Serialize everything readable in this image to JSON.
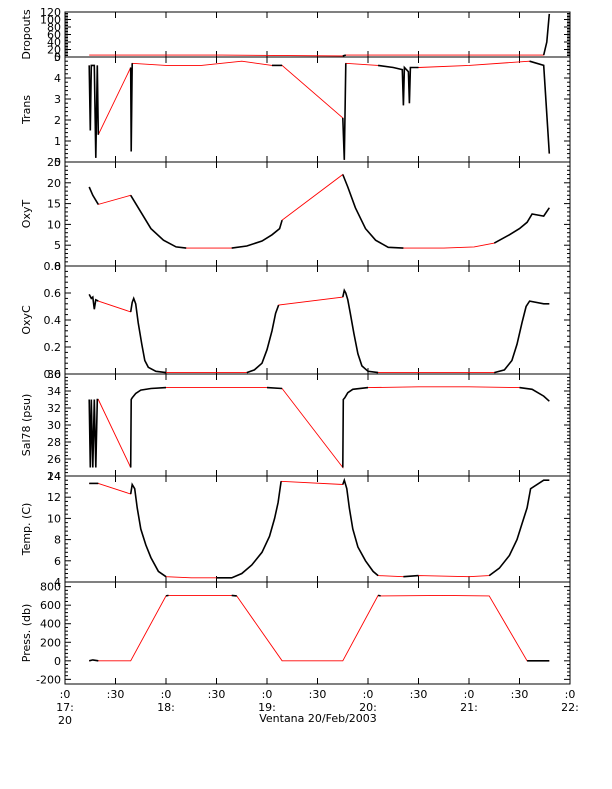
{
  "figure": {
    "xlabel": "Ventana 20/Feb/2003",
    "x_ticks": [
      {
        "pos": 0,
        "line1": ":0",
        "line2": "17:",
        "line3": "20"
      },
      {
        "pos": 10,
        "line1": ":30",
        "line2": "",
        "line3": ""
      },
      {
        "pos": 20,
        "line1": ":0",
        "line2": "18:",
        "line3": ""
      },
      {
        "pos": 30,
        "line1": ":30",
        "line2": "",
        "line3": ""
      },
      {
        "pos": 40,
        "line1": ":0",
        "line2": "19:",
        "line3": ""
      },
      {
        "pos": 50,
        "line1": ":30",
        "line2": "",
        "line3": ""
      },
      {
        "pos": 60,
        "line1": ":0",
        "line2": "20:",
        "line3": ""
      },
      {
        "pos": 70,
        "line1": ":30",
        "line2": "",
        "line3": ""
      },
      {
        "pos": 80,
        "line1": ":0",
        "line2": "21:",
        "line3": ""
      },
      {
        "pos": 90,
        "line1": ":30",
        "line2": "",
        "line3": ""
      },
      {
        "pos": 100,
        "line1": ":0",
        "line2": "22:",
        "line3": ""
      }
    ],
    "colors": {
      "data": "#000000",
      "connector": "#ff0000",
      "axis": "#000000"
    }
  },
  "chart_data": [
    {
      "type": "line",
      "ylabel": "Dropouts",
      "ylim": [
        0,
        120
      ],
      "yticks": [
        0,
        20,
        40,
        60,
        80,
        100,
        120
      ],
      "ytick_labels": [
        "0",
        "20",
        "40",
        "60",
        "80",
        "100",
        "120"
      ],
      "series": [
        {
          "values": [
            [
              4.8,
              5
            ],
            [
              13,
              5
            ],
            [
              31,
              5
            ],
            [
              55,
              3
            ],
            [
              55.6,
              5
            ],
            [
              94.8,
              5
            ],
            [
              95.4,
              40
            ],
            [
              95.9,
              115
            ]
          ]
        }
      ]
    },
    {
      "type": "line",
      "ylabel": "Trans",
      "ylim": [
        0,
        5
      ],
      "yticks": [
        0,
        1,
        2,
        3,
        4,
        5
      ],
      "ytick_labels": [
        "0",
        "1",
        "2",
        "3",
        "4",
        "5"
      ],
      "series": [
        {
          "values": [
            [
              4.8,
              4.6
            ],
            [
              5.0,
              1.5
            ],
            [
              5.2,
              4.6
            ],
            [
              5.8,
              4.6
            ],
            [
              6.1,
              0.2
            ],
            [
              6.4,
              4.6
            ],
            [
              6.6,
              1.3
            ],
            [
              13.0,
              4.5
            ],
            [
              13.1,
              0.5
            ],
            [
              13.3,
              4.7
            ],
            [
              20,
              4.6
            ],
            [
              27,
              4.6
            ],
            [
              35,
              4.8
            ],
            [
              41,
              4.6
            ],
            [
              43,
              4.6
            ],
            [
              55,
              2.1
            ],
            [
              55.3,
              0.1
            ],
            [
              55.6,
              4.7
            ],
            [
              62,
              4.6
            ],
            [
              65,
              4.5
            ],
            [
              66.8,
              4.4
            ],
            [
              67.0,
              2.7
            ],
            [
              67.2,
              4.5
            ],
            [
              68.0,
              4.3
            ],
            [
              68.2,
              2.8
            ],
            [
              68.4,
              4.5
            ],
            [
              70,
              4.5
            ],
            [
              80,
              4.6
            ],
            [
              92,
              4.8
            ],
            [
              94.8,
              4.6
            ],
            [
              95.9,
              0.4
            ]
          ]
        }
      ]
    },
    {
      "type": "line",
      "ylabel": "OxyT",
      "ylim": [
        0,
        25
      ],
      "yticks": [
        0,
        5,
        10,
        15,
        20,
        25
      ],
      "ytick_labels": [
        "0",
        "5",
        "10",
        "15",
        "20",
        "25"
      ],
      "series": [
        {
          "values": [
            [
              4.8,
              19
            ],
            [
              5.5,
              17
            ],
            [
              6.6,
              14.8
            ],
            [
              13,
              17
            ],
            [
              13.5,
              16
            ],
            [
              15,
              13
            ],
            [
              17,
              9
            ],
            [
              19.5,
              6.2
            ],
            [
              22,
              4.6
            ],
            [
              24,
              4.3
            ],
            [
              28,
              4.3
            ],
            [
              33,
              4.3
            ],
            [
              36,
              4.8
            ],
            [
              39,
              6
            ],
            [
              41,
              7.5
            ],
            [
              42.5,
              9
            ],
            [
              43,
              11
            ],
            [
              55,
              22
            ],
            [
              56,
              19
            ],
            [
              57.5,
              14
            ],
            [
              59.5,
              9
            ],
            [
              61.5,
              6.2
            ],
            [
              64,
              4.5
            ],
            [
              67,
              4.3
            ],
            [
              75,
              4.3
            ],
            [
              81,
              4.6
            ],
            [
              85,
              5.5
            ],
            [
              88,
              7.5
            ],
            [
              90,
              9
            ],
            [
              91.5,
              10.5
            ],
            [
              92.5,
              12.5
            ],
            [
              94.8,
              12
            ],
            [
              95.9,
              14
            ]
          ]
        }
      ]
    },
    {
      "type": "line",
      "ylabel": "OxyC",
      "ylim": [
        0,
        0.8
      ],
      "yticks": [
        0,
        0.2,
        0.4,
        0.6,
        0.8
      ],
      "ytick_labels": [
        "0.0",
        "0.2",
        "0.4",
        "0.6",
        "0.8"
      ],
      "series": [
        {
          "values": [
            [
              4.8,
              0.59
            ],
            [
              5.2,
              0.56
            ],
            [
              5.5,
              0.57
            ],
            [
              5.8,
              0.48
            ],
            [
              6.1,
              0.55
            ],
            [
              6.6,
              0.54
            ],
            [
              13,
              0.46
            ],
            [
              13.3,
              0.53
            ],
            [
              13.6,
              0.56
            ],
            [
              14,
              0.52
            ],
            [
              14.5,
              0.38
            ],
            [
              15.2,
              0.22
            ],
            [
              15.8,
              0.1
            ],
            [
              16.5,
              0.05
            ],
            [
              18,
              0.02
            ],
            [
              20,
              0.01
            ],
            [
              30,
              0.01
            ],
            [
              36,
              0.01
            ],
            [
              37.5,
              0.03
            ],
            [
              39,
              0.08
            ],
            [
              40,
              0.18
            ],
            [
              41,
              0.32
            ],
            [
              41.7,
              0.45
            ],
            [
              42.3,
              0.51
            ],
            [
              55,
              0.57
            ],
            [
              55.3,
              0.62
            ],
            [
              55.6,
              0.6
            ],
            [
              56,
              0.55
            ],
            [
              56.5,
              0.45
            ],
            [
              57.2,
              0.3
            ],
            [
              58,
              0.15
            ],
            [
              58.8,
              0.06
            ],
            [
              60,
              0.02
            ],
            [
              62,
              0.01
            ],
            [
              75,
              0.01
            ],
            [
              85,
              0.01
            ],
            [
              87,
              0.03
            ],
            [
              88.5,
              0.1
            ],
            [
              89.5,
              0.22
            ],
            [
              90.5,
              0.38
            ],
            [
              91.3,
              0.5
            ],
            [
              92,
              0.54
            ],
            [
              94.8,
              0.52
            ],
            [
              95.9,
              0.52
            ]
          ]
        }
      ]
    },
    {
      "type": "line",
      "ylabel": "Sal78 (psu)",
      "ylim": [
        24,
        36
      ],
      "yticks": [
        24,
        26,
        28,
        30,
        32,
        34,
        36
      ],
      "ytick_labels": [
        "24",
        "26",
        "28",
        "30",
        "32",
        "34",
        "36"
      ],
      "series": [
        {
          "values": [
            [
              4.8,
              33
            ],
            [
              5.0,
              25
            ],
            [
              5.2,
              33
            ],
            [
              5.5,
              25
            ],
            [
              5.8,
              33
            ],
            [
              6.1,
              25
            ],
            [
              6.4,
              33
            ],
            [
              6.6,
              33
            ],
            [
              13,
              25
            ],
            [
              13.1,
              33
            ],
            [
              13.3,
              33.2
            ],
            [
              14,
              33.7
            ],
            [
              15,
              34.1
            ],
            [
              17,
              34.3
            ],
            [
              20,
              34.4
            ],
            [
              30,
              34.4
            ],
            [
              40,
              34.4
            ],
            [
              43,
              34.3
            ],
            [
              55,
              25
            ],
            [
              55.1,
              33
            ],
            [
              55.4,
              33.2
            ],
            [
              56,
              33.8
            ],
            [
              57,
              34.2
            ],
            [
              60,
              34.4
            ],
            [
              70,
              34.5
            ],
            [
              80,
              34.5
            ],
            [
              90,
              34.4
            ],
            [
              92.5,
              34.2
            ],
            [
              94.8,
              33.4
            ],
            [
              95.9,
              32.8
            ]
          ]
        }
      ]
    },
    {
      "type": "line",
      "ylabel": "Temp. (C)",
      "ylim": [
        4,
        14
      ],
      "yticks": [
        4,
        6,
        8,
        10,
        12,
        14
      ],
      "ytick_labels": [
        "4",
        "6",
        "8",
        "10",
        "12",
        "14"
      ],
      "series": [
        {
          "values": [
            [
              4.8,
              13.3
            ],
            [
              6.6,
              13.3
            ],
            [
              13,
              12.3
            ],
            [
              13.3,
              13.2
            ],
            [
              13.8,
              12.8
            ],
            [
              14.3,
              11
            ],
            [
              15,
              9
            ],
            [
              16,
              7.5
            ],
            [
              17,
              6.3
            ],
            [
              18.5,
              5
            ],
            [
              20,
              4.5
            ],
            [
              25,
              4.4
            ],
            [
              30,
              4.4
            ],
            [
              33,
              4.4
            ],
            [
              35,
              4.8
            ],
            [
              37,
              5.6
            ],
            [
              39,
              6.8
            ],
            [
              40.5,
              8.3
            ],
            [
              41.5,
              10
            ],
            [
              42.2,
              11.5
            ],
            [
              42.8,
              13.5
            ],
            [
              55,
              13.2
            ],
            [
              55.3,
              13.6
            ],
            [
              55.8,
              12.8
            ],
            [
              56.3,
              11
            ],
            [
              57,
              9
            ],
            [
              58,
              7.3
            ],
            [
              59.5,
              6
            ],
            [
              61,
              5
            ],
            [
              62,
              4.6
            ],
            [
              67,
              4.5
            ],
            [
              70,
              4.6
            ],
            [
              80,
              4.5
            ],
            [
              84,
              4.6
            ],
            [
              86,
              5.3
            ],
            [
              88,
              6.5
            ],
            [
              89.5,
              8
            ],
            [
              90.5,
              9.5
            ],
            [
              91.5,
              11
            ],
            [
              92.2,
              12.8
            ],
            [
              94.8,
              13.6
            ],
            [
              95.9,
              13.6
            ]
          ]
        }
      ]
    },
    {
      "type": "line",
      "ylabel": "Press. (db)",
      "ylim": [
        -250,
        850
      ],
      "yticks": [
        -200,
        0,
        200,
        400,
        600,
        800
      ],
      "ytick_labels": [
        "-200",
        "0",
        "200",
        "400",
        "600",
        "800"
      ],
      "series": [
        {
          "values": [
            [
              4.8,
              0
            ],
            [
              5.5,
              10
            ],
            [
              6.6,
              0
            ],
            [
              13,
              0
            ],
            [
              20,
              700
            ],
            [
              20.5,
              705
            ],
            [
              33,
              705
            ],
            [
              34,
              700
            ],
            [
              43,
              0
            ],
            [
              55,
              0
            ],
            [
              62,
              705
            ],
            [
              62.5,
              700
            ],
            [
              75,
              705
            ],
            [
              84,
              700
            ],
            [
              91.5,
              0
            ],
            [
              94.8,
              0
            ],
            [
              95.9,
              0
            ]
          ]
        }
      ]
    }
  ]
}
